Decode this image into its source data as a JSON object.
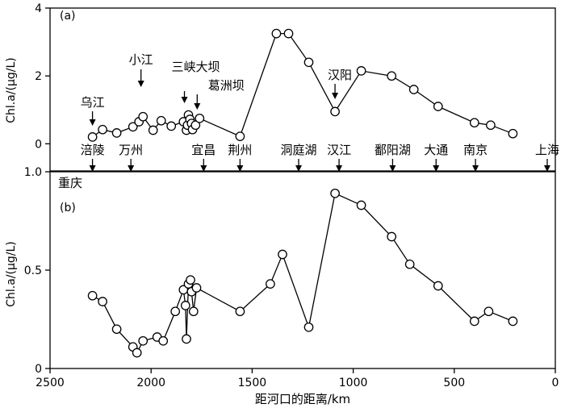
{
  "chart_data": [
    {
      "panel": "a",
      "type": "line",
      "panel_label": "(a)",
      "ylabel": "Chl.a/(μg/L)",
      "xlim": [
        2500,
        0
      ],
      "ylim": [
        -0.8,
        4
      ],
      "yticks": [
        0,
        2,
        4
      ],
      "x": [
        2290,
        2240,
        2170,
        2090,
        2060,
        2040,
        1990,
        1950,
        1900,
        1840,
        1825,
        1820,
        1815,
        1808,
        1800,
        1795,
        1780,
        1760,
        1560,
        1380,
        1320,
        1220,
        1090,
        960,
        810,
        700,
        580,
        400,
        320,
        210
      ],
      "y": [
        0.2,
        0.42,
        0.32,
        0.5,
        0.65,
        0.8,
        0.4,
        0.68,
        0.52,
        0.65,
        0.4,
        0.55,
        0.85,
        0.72,
        0.6,
        0.42,
        0.55,
        0.75,
        0.22,
        3.25,
        3.25,
        2.4,
        0.95,
        2.15,
        2.0,
        1.6,
        1.1,
        0.62,
        0.55,
        0.3
      ],
      "annotations": [
        {
          "text": "乌江",
          "x": 2290,
          "y": 0.2
        },
        {
          "text": "小江",
          "x": 2050,
          "y": 1.3
        },
        {
          "text": "三峡大坝",
          "x": 1835,
          "y": 0.45
        },
        {
          "text": "葛洲坝",
          "x": 1772,
          "y": 0.62
        },
        {
          "text": "汉阳",
          "x": 1090,
          "y": 0.95
        }
      ],
      "station_labels": [
        {
          "text": "涪陵",
          "x": 2290
        },
        {
          "text": "万州",
          "x": 2100
        },
        {
          "text": "宜昌",
          "x": 1740
        },
        {
          "text": "荆州",
          "x": 1560
        },
        {
          "text": "洞庭湖",
          "x": 1270
        },
        {
          "text": "汉江",
          "x": 1070
        },
        {
          "text": "鄱阳湖",
          "x": 805
        },
        {
          "text": "大通",
          "x": 590
        },
        {
          "text": "南京",
          "x": 395
        },
        {
          "text": "上海",
          "x": 40
        }
      ]
    },
    {
      "panel": "b",
      "type": "line",
      "panel_label": "(b)",
      "ylabel": "Chl.a/(μg/L)",
      "xlabel": "距河口的距离/km",
      "xlim": [
        2500,
        0
      ],
      "ylim": [
        0,
        1.0
      ],
      "yticks": [
        0,
        0.5,
        1.0
      ],
      "ytick_labels": [
        "0",
        "0.5",
        "1.0"
      ],
      "xticks": [
        2500,
        2000,
        1500,
        1000,
        500,
        0
      ],
      "x": [
        2290,
        2240,
        2170,
        2090,
        2070,
        2040,
        1970,
        1940,
        1880,
        1840,
        1830,
        1825,
        1815,
        1805,
        1800,
        1790,
        1775,
        1560,
        1410,
        1350,
        1220,
        1090,
        960,
        810,
        720,
        580,
        400,
        330,
        210
      ],
      "y": [
        0.37,
        0.34,
        0.2,
        0.11,
        0.08,
        0.14,
        0.16,
        0.14,
        0.29,
        0.4,
        0.32,
        0.15,
        0.43,
        0.45,
        0.39,
        0.29,
        0.41,
        0.29,
        0.43,
        0.58,
        0.21,
        0.89,
        0.83,
        0.67,
        0.53,
        0.42,
        0.24,
        0.29,
        0.24
      ]
    }
  ],
  "labels": {
    "chongqing": "重庆"
  }
}
